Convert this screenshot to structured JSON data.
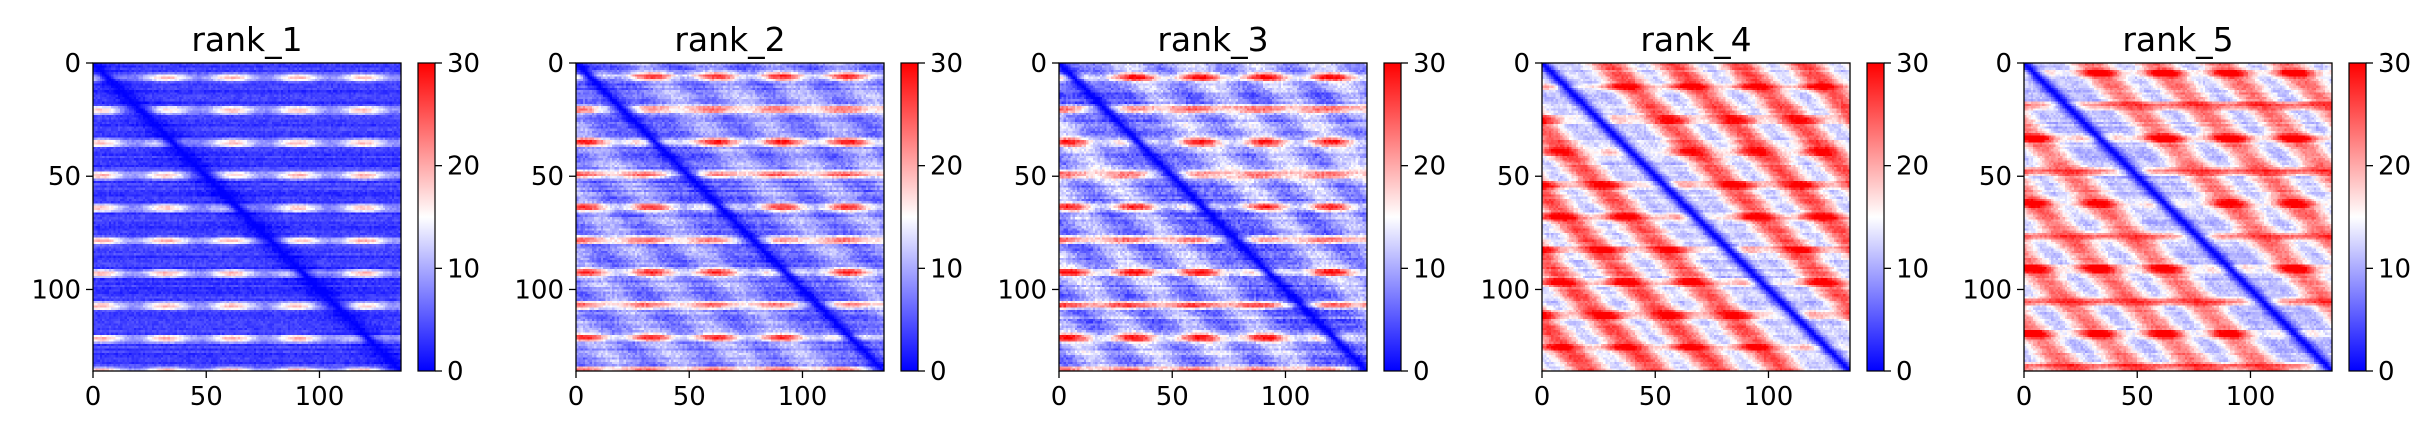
{
  "chart_data": [
    {
      "type": "heatmap",
      "title": "rank_1",
      "xlim": [
        0,
        136
      ],
      "ylim": [
        136,
        0
      ],
      "xticks": [
        0,
        50,
        100
      ],
      "yticks": [
        0,
        50,
        100
      ],
      "colorbar": {
        "min": 0,
        "max": 30,
        "ticks": [
          0,
          10,
          20,
          30
        ],
        "colormap": "bwr"
      },
      "pattern": {
        "band_period": 14.4,
        "band_phase": 6,
        "band_strength": 0.55,
        "anti_strength": 0.0,
        "base_level": 0.12,
        "background": 2,
        "noise": 0.08
      }
    },
    {
      "type": "heatmap",
      "title": "rank_2",
      "xlim": [
        0,
        136
      ],
      "ylim": [
        136,
        0
      ],
      "xticks": [
        0,
        50,
        100
      ],
      "yticks": [
        0,
        50,
        100
      ],
      "colorbar": {
        "min": 0,
        "max": 30,
        "ticks": [
          0,
          10,
          20,
          30
        ],
        "colormap": "bwr"
      },
      "pattern": {
        "band_period": 14.4,
        "band_phase": 20,
        "band_strength": 0.6,
        "anti_strength": 0.15,
        "base_level": 0.28,
        "background": 6,
        "noise": 0.12
      }
    },
    {
      "type": "heatmap",
      "title": "rank_3",
      "xlim": [
        0,
        136
      ],
      "ylim": [
        136,
        0
      ],
      "xticks": [
        0,
        50,
        100
      ],
      "yticks": [
        0,
        50,
        100
      ],
      "colorbar": {
        "min": 0,
        "max": 30,
        "ticks": [
          0,
          10,
          20,
          30
        ],
        "colormap": "bwr"
      },
      "pattern": {
        "band_period": 14.4,
        "band_phase": 20,
        "band_strength": 0.6,
        "anti_strength": 0.2,
        "base_level": 0.32,
        "background": 7,
        "noise": 0.14
      }
    },
    {
      "type": "heatmap",
      "title": "rank_4",
      "xlim": [
        0,
        136
      ],
      "ylim": [
        136,
        0
      ],
      "xticks": [
        0,
        50,
        100
      ],
      "yticks": [
        0,
        50,
        100
      ],
      "colorbar": {
        "min": 0,
        "max": 30,
        "ticks": [
          0,
          10,
          20,
          30
        ],
        "colormap": "bwr"
      },
      "pattern": {
        "band_period": 14.4,
        "band_phase": 10,
        "band_strength": 0.35,
        "anti_strength": 0.45,
        "base_level": 0.62,
        "background": 20,
        "noise": 0.1
      }
    },
    {
      "type": "heatmap",
      "title": "rank_5",
      "xlim": [
        0,
        136
      ],
      "ylim": [
        136,
        0
      ],
      "xticks": [
        0,
        50,
        100
      ],
      "yticks": [
        0,
        50,
        100
      ],
      "colorbar": {
        "min": 0,
        "max": 30,
        "ticks": [
          0,
          10,
          20,
          30
        ],
        "colormap": "bwr"
      },
      "pattern": {
        "band_period": 14.4,
        "band_phase": 4,
        "band_strength": 0.4,
        "anti_strength": 0.4,
        "base_level": 0.58,
        "background": 18,
        "noise": 0.1
      }
    }
  ]
}
